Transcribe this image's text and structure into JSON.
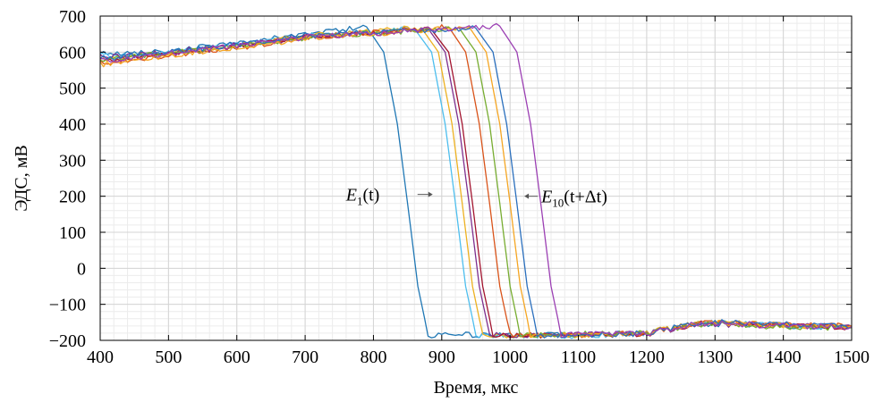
{
  "chart_data": {
    "type": "line",
    "title": "",
    "xlabel": "Время, мкс",
    "ylabel": "ЭДС, мВ",
    "xlim": [
      400,
      1500
    ],
    "ylim": [
      -200,
      700
    ],
    "grid": true,
    "minor_grid": true,
    "xticks": [
      "400",
      "500",
      "600",
      "700",
      "800",
      "900",
      "1000",
      "1100",
      "1200",
      "1300",
      "1400",
      "1500"
    ],
    "yticks": [
      "−200",
      "−100",
      "0",
      "100",
      "200",
      "300",
      "400",
      "500",
      "600",
      "700"
    ],
    "annotations": [
      {
        "id": "e1",
        "E": "E",
        "sub": "1",
        "rest": "(t)",
        "x": 875,
        "y": 205
      },
      {
        "id": "e10",
        "E": "E",
        "sub": "10",
        "rest": "(t+Δt)",
        "x": 1030,
        "y": 200
      }
    ],
    "series": [
      {
        "color": "#1f77b4",
        "x": [
          400,
          500,
          600,
          700,
          790,
          815,
          835,
          850,
          865,
          880,
          1100,
          1200,
          1280,
          1400,
          1500
        ],
        "y": [
          595,
          605,
          625,
          650,
          670,
          600,
          400,
          180,
          -50,
          -185,
          -185,
          -180,
          -155,
          -160,
          -165
        ]
      },
      {
        "color": "#4dbeee",
        "x": [
          400,
          500,
          600,
          700,
          860,
          885,
          905,
          920,
          935,
          950,
          1100,
          1200,
          1280,
          1400,
          1500
        ],
        "y": [
          590,
          600,
          620,
          645,
          665,
          600,
          400,
          180,
          -50,
          -185,
          -190,
          -180,
          -150,
          -158,
          -165
        ]
      },
      {
        "color": "#edb120",
        "x": [
          400,
          500,
          600,
          700,
          870,
          895,
          915,
          930,
          945,
          960,
          1100,
          1200,
          1280,
          1400,
          1500
        ],
        "y": [
          580,
          598,
          618,
          645,
          668,
          600,
          400,
          180,
          -50,
          -185,
          -188,
          -178,
          -150,
          -160,
          -162
        ]
      },
      {
        "color": "#7e2f8e",
        "x": [
          400,
          500,
          600,
          700,
          880,
          905,
          925,
          940,
          955,
          970,
          1100,
          1200,
          1280,
          1400,
          1500
        ],
        "y": [
          585,
          600,
          620,
          640,
          665,
          600,
          400,
          180,
          -50,
          -185,
          -185,
          -180,
          -155,
          -158,
          -160
        ]
      },
      {
        "color": "#a2142f",
        "x": [
          400,
          500,
          600,
          700,
          885,
          910,
          930,
          945,
          960,
          975,
          1100,
          1200,
          1280,
          1400,
          1500
        ],
        "y": [
          575,
          595,
          615,
          642,
          662,
          600,
          400,
          180,
          -50,
          -185,
          -187,
          -182,
          -152,
          -160,
          -163
        ]
      },
      {
        "color": "#d95319",
        "x": [
          400,
          500,
          600,
          700,
          910,
          935,
          955,
          970,
          985,
          1000,
          1100,
          1200,
          1280,
          1400,
          1500
        ],
        "y": [
          570,
          592,
          612,
          640,
          670,
          600,
          400,
          180,
          -50,
          -185,
          -185,
          -180,
          -150,
          -158,
          -160
        ]
      },
      {
        "color": "#77ac30",
        "x": [
          400,
          500,
          600,
          700,
          925,
          950,
          970,
          985,
          1000,
          1015,
          1100,
          1200,
          1280,
          1400,
          1500
        ],
        "y": [
          578,
          596,
          616,
          640,
          668,
          600,
          400,
          180,
          -50,
          -185,
          -183,
          -178,
          -155,
          -162,
          -165
        ]
      },
      {
        "color": "#f5a623",
        "x": [
          400,
          500,
          600,
          700,
          940,
          965,
          985,
          1000,
          1015,
          1030,
          1100,
          1200,
          1280,
          1400,
          1500
        ],
        "y": [
          565,
          590,
          612,
          638,
          670,
          600,
          400,
          180,
          -50,
          -185,
          -188,
          -180,
          -150,
          -157,
          -160
        ]
      },
      {
        "color": "#2a6fbd",
        "x": [
          400,
          500,
          600,
          700,
          950,
          975,
          995,
          1010,
          1025,
          1040,
          1100,
          1200,
          1280,
          1400,
          1500
        ],
        "y": [
          582,
          600,
          622,
          646,
          666,
          600,
          400,
          180,
          -50,
          -185,
          -186,
          -180,
          -148,
          -156,
          -162
        ]
      },
      {
        "color": "#9b3fb3",
        "x": [
          400,
          500,
          600,
          700,
          985,
          1010,
          1030,
          1045,
          1060,
          1075,
          1100,
          1200,
          1280,
          1400,
          1500
        ],
        "y": [
          575,
          595,
          618,
          642,
          672,
          600,
          400,
          180,
          -50,
          -185,
          -185,
          -180,
          -152,
          -160,
          -162
        ]
      }
    ]
  }
}
